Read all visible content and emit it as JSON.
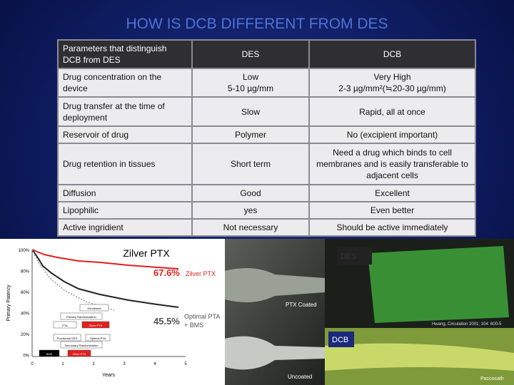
{
  "title": "HOW IS DCB DIFFERENT FROM DES",
  "table": {
    "header": [
      "Parameters that distinguish DCB from DES",
      "DES",
      "DCB"
    ],
    "rows": [
      [
        "Drug concentration on the device",
        "Low\n5-10 µg/mm",
        "Very High\n2-3 µg/mm²(≒20-30 µg/mm)"
      ],
      [
        "Drug transfer at the time of deployment",
        "Slow",
        "Rapid, all at once"
      ],
      [
        "Reservoir of drug",
        "Polymer",
        "No (excipient important)"
      ],
      [
        "Drug retention in tissues",
        "Short term",
        "Need a drug which binds to cell membranes and is easily transferable to adjacent cells"
      ],
      [
        "Diffusion",
        "Good",
        "Excellent"
      ],
      [
        "Lipophilic",
        "yes",
        "Even better"
      ],
      [
        "Active ingridient",
        "Not necessary",
        "Should be active immediately"
      ]
    ]
  },
  "figures": {
    "km_chart": {
      "label": "Zilver PTX",
      "y_axis": "Primary Patency",
      "x_axis": "Years",
      "yticks": [
        "100%",
        "80%",
        "60%",
        "40%",
        "20%",
        "0%"
      ],
      "xticks": [
        "0",
        "1",
        "2",
        "3",
        "4",
        "5"
      ],
      "annotations": [
        {
          "value": "67.6%",
          "name": "Zilver PTX"
        },
        {
          "value": "45.5%",
          "name": "Optimal PTA",
          "name2": "+ BMS"
        }
      ],
      "boxes": [
        "Enrollment",
        "Primary Randomization",
        "PTA",
        "Zilver PTX",
        "Provisional DES",
        "Optimal PTA",
        "Secondary Randomization",
        "BMS",
        "Zilver PTX"
      ]
    },
    "balloon_photo": {
      "top": "PTX Coated",
      "bottom": "Uncoated"
    },
    "fluorescence": {
      "top": "DES",
      "citation": "Hwang, Circulation 2001; 104: 600-5",
      "bottom": "DCB",
      "caption": "Paccocath"
    }
  }
}
